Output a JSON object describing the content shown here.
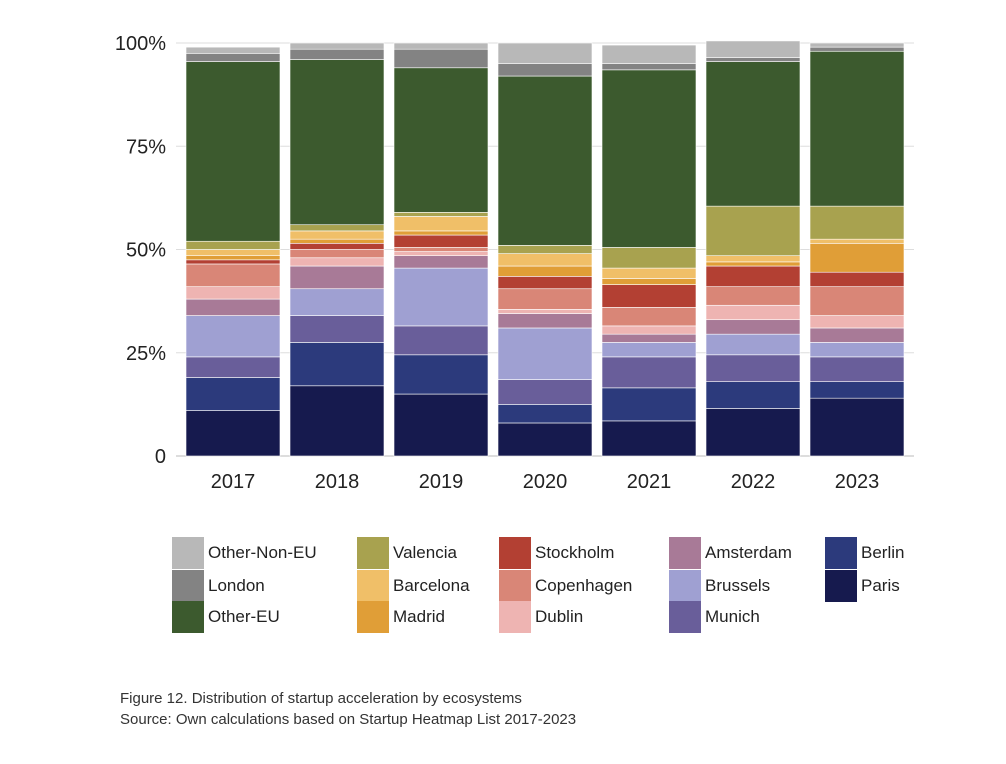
{
  "chart_data": {
    "type": "bar",
    "stacked": true,
    "categories": [
      "2017",
      "2018",
      "2019",
      "2020",
      "2021",
      "2022",
      "2023"
    ],
    "ylim": [
      0,
      100
    ],
    "y_ticks": [
      "0",
      "25%",
      "50%",
      "75%",
      "100%"
    ],
    "grid": true,
    "legend_position": "bottom",
    "series": [
      {
        "name": "Paris",
        "color": "#161a4e",
        "values": [
          11,
          17,
          15,
          8,
          8.5,
          11.5,
          14
        ]
      },
      {
        "name": "Berlin",
        "color": "#2c3a7c",
        "values": [
          8,
          10.5,
          9.5,
          4.5,
          8,
          6.5,
          4
        ]
      },
      {
        "name": "Munich",
        "color": "#695e9a",
        "values": [
          5,
          6.5,
          7,
          6,
          7.5,
          6.5,
          6
        ]
      },
      {
        "name": "Brussels",
        "color": "#9fa0d2",
        "values": [
          10,
          6.5,
          14,
          12.5,
          3.5,
          5,
          3.5
        ]
      },
      {
        "name": "Amsterdam",
        "color": "#a87a97",
        "values": [
          4,
          5.5,
          3,
          3.5,
          2,
          3.5,
          3.5
        ]
      },
      {
        "name": "Dublin",
        "color": "#eeb4b2",
        "values": [
          3,
          2,
          1,
          1,
          2,
          3.5,
          3
        ]
      },
      {
        "name": "Copenhagen",
        "color": "#d98677",
        "values": [
          5.5,
          2,
          1,
          5,
          4.5,
          4.5,
          7
        ]
      },
      {
        "name": "Stockholm",
        "color": "#b34033",
        "values": [
          1,
          1.5,
          3,
          3,
          5.5,
          5,
          3.5
        ]
      },
      {
        "name": "Madrid",
        "color": "#e09e37",
        "values": [
          1,
          1,
          1,
          2.5,
          1.5,
          1,
          7
        ]
      },
      {
        "name": "Barcelona",
        "color": "#f0bf68",
        "values": [
          1.5,
          2,
          3.5,
          3,
          2.5,
          1.5,
          1
        ]
      },
      {
        "name": "Valencia",
        "color": "#a8a24f",
        "values": [
          2,
          1.5,
          1,
          2,
          5,
          12,
          8
        ]
      },
      {
        "name": "Other-EU",
        "color": "#3c5a2e",
        "values": [
          43.5,
          40,
          35,
          41,
          43,
          35,
          37.5
        ]
      },
      {
        "name": "London",
        "color": "#838383",
        "values": [
          2,
          2.5,
          4.5,
          3,
          1.5,
          1,
          1
        ]
      },
      {
        "name": "Other-Non-EU",
        "color": "#b8b8b8",
        "values": [
          1.5,
          1.5,
          1.5,
          5,
          4.5,
          4,
          1
        ]
      }
    ]
  },
  "legend": {
    "items": [
      {
        "label": "Other-Non-EU",
        "color": "#b8b8b8"
      },
      {
        "label": "London",
        "color": "#838383"
      },
      {
        "label": "Other-EU",
        "color": "#3c5a2e"
      },
      {
        "label": "Valencia",
        "color": "#a8a24f"
      },
      {
        "label": "Barcelona",
        "color": "#f0bf68"
      },
      {
        "label": "Madrid",
        "color": "#e09e37"
      },
      {
        "label": "Stockholm",
        "color": "#b34033"
      },
      {
        "label": "Copenhagen",
        "color": "#d98677"
      },
      {
        "label": "Dublin",
        "color": "#eeb4b2"
      },
      {
        "label": "Amsterdam",
        "color": "#a87a97"
      },
      {
        "label": "Brussels",
        "color": "#9fa0d2"
      },
      {
        "label": "Munich",
        "color": "#695e9a"
      },
      {
        "label": "Berlin",
        "color": "#2c3a7c"
      },
      {
        "label": "Paris",
        "color": "#161a4e"
      }
    ]
  },
  "caption": {
    "line1": "Figure 12. Distribution of startup acceleration by ecosystems",
    "line2": "Source: Own calculations based on Startup Heatmap List 2017-2023"
  }
}
